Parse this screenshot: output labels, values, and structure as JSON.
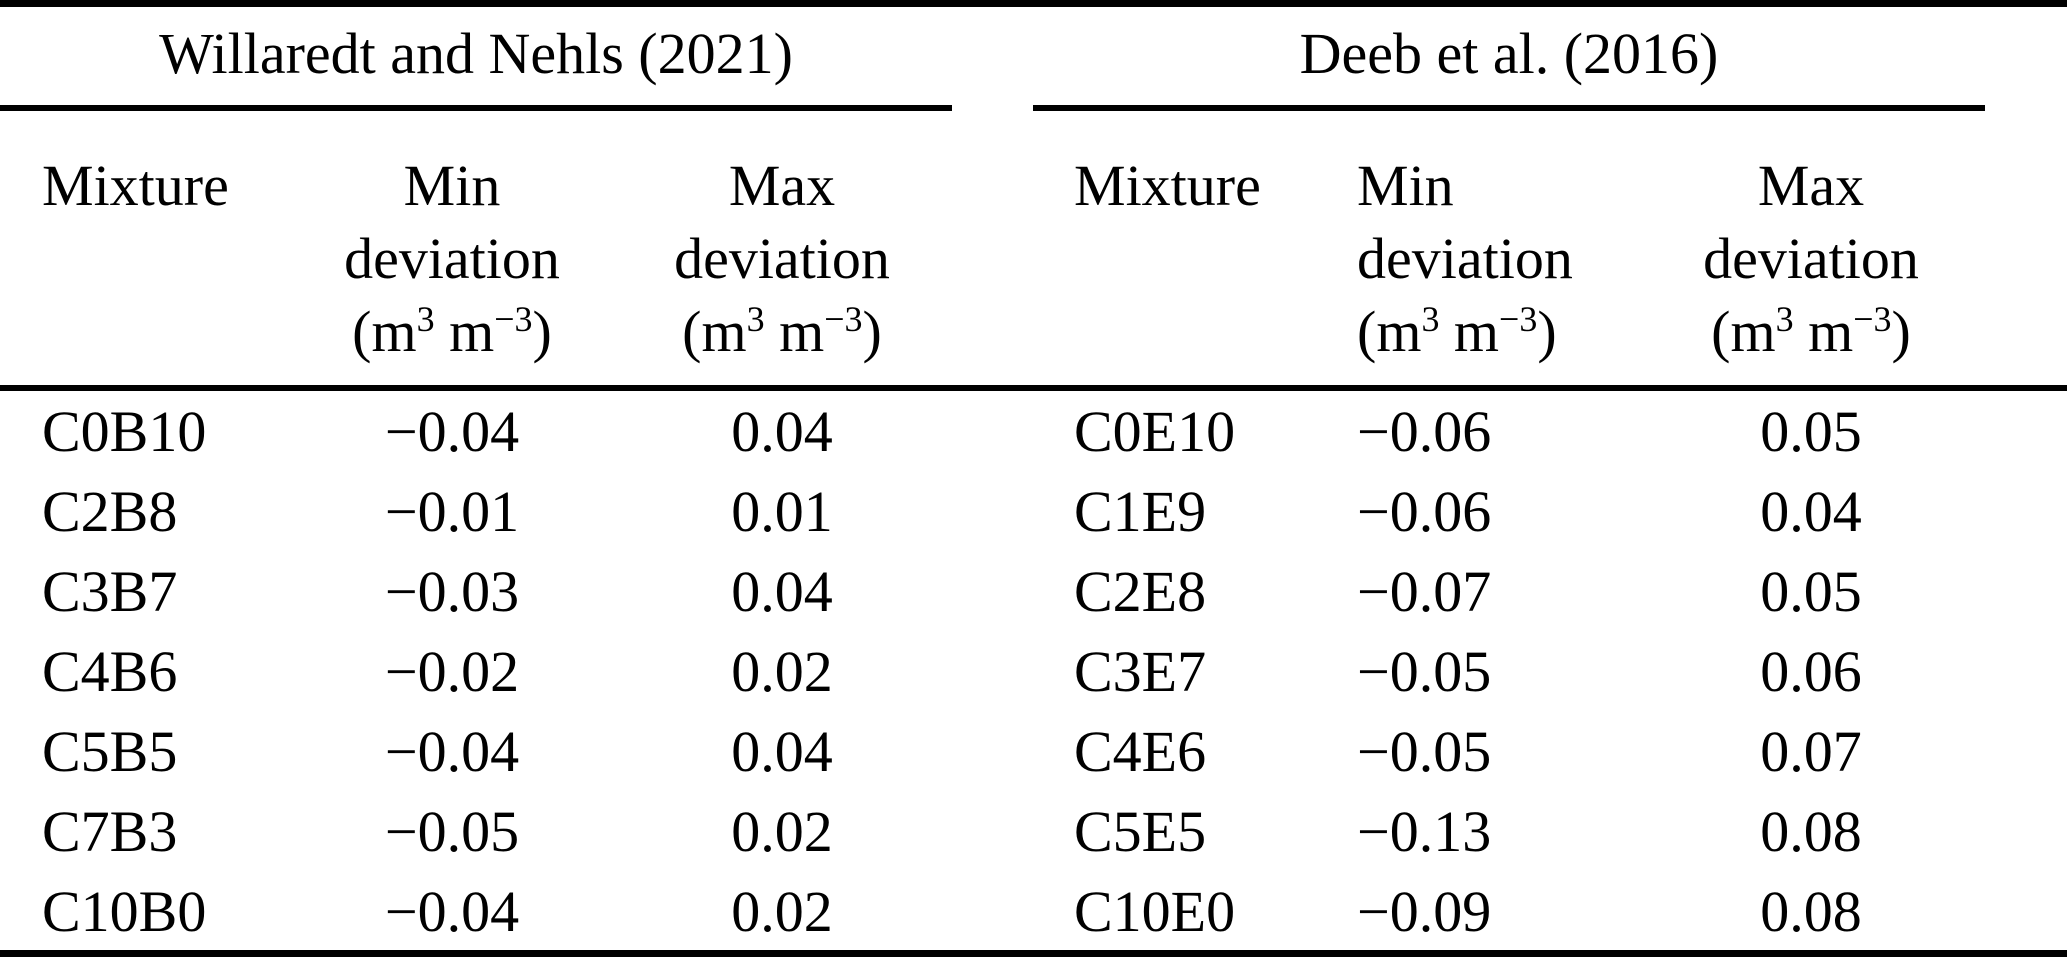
{
  "table": {
    "colors": {
      "background": "#ffffff",
      "text": "#000000",
      "rule": "#000000"
    },
    "sections": [
      {
        "title": "Willaredt and Nehls (2021)"
      },
      {
        "title": "Deeb et al. (2016)"
      }
    ],
    "columns": {
      "mixture": "Mixture",
      "min_line1": "Min",
      "max_line1": "Max",
      "line2": "deviation",
      "unit": {
        "open": "(m",
        "sup1": "3",
        "mid": " m",
        "sup2": "−3",
        "close": ")"
      }
    },
    "left_rows": [
      {
        "mixture": "C0B10",
        "min": "−0.04",
        "max": "0.04"
      },
      {
        "mixture": "C2B8",
        "min": "−0.01",
        "max": "0.01"
      },
      {
        "mixture": "C3B7",
        "min": "−0.03",
        "max": "0.04"
      },
      {
        "mixture": "C4B6",
        "min": "−0.02",
        "max": "0.02"
      },
      {
        "mixture": "C5B5",
        "min": "−0.04",
        "max": "0.04"
      },
      {
        "mixture": "C7B3",
        "min": "−0.05",
        "max": "0.02"
      },
      {
        "mixture": "C10B0",
        "min": "−0.04",
        "max": "0.02"
      }
    ],
    "right_rows": [
      {
        "mixture": "C0E10",
        "min": "−0.06",
        "max": "0.05"
      },
      {
        "mixture": "C1E9",
        "min": "−0.06",
        "max": "0.04"
      },
      {
        "mixture": "C2E8",
        "min": "−0.07",
        "max": "0.05"
      },
      {
        "mixture": "C3E7",
        "min": "−0.05",
        "max": "0.06"
      },
      {
        "mixture": "C4E6",
        "min": "−0.05",
        "max": "0.07"
      },
      {
        "mixture": "C5E5",
        "min": "−0.13",
        "max": "0.08"
      },
      {
        "mixture": "C10E0",
        "min": "−0.09",
        "max": "0.08"
      }
    ]
  }
}
